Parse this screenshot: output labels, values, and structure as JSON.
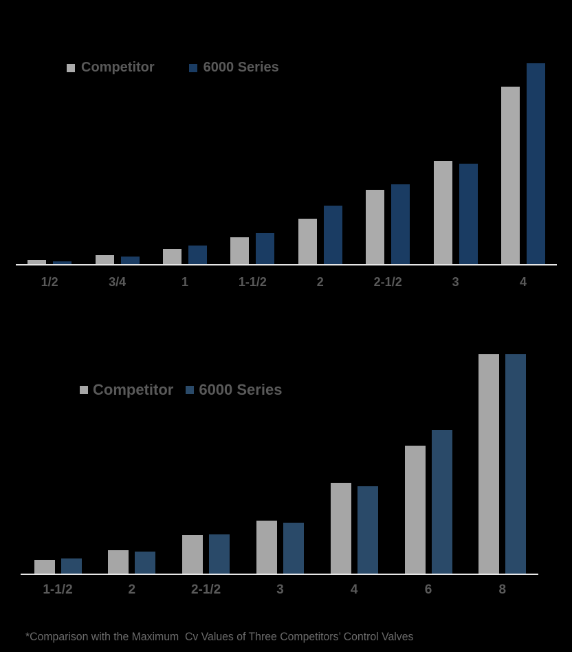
{
  "background_color": "#000000",
  "axis_line_color": "#e8e8e8",
  "label_color": "#5a5a5a",
  "legend_text_color": "#595959",
  "footer": {
    "note": "*Comparison with the Maximum  Cv Values of Three Competitors’ Control Valves"
  },
  "chart_data": [
    {
      "type": "bar",
      "title": "",
      "xlabel": "",
      "ylabel": "",
      "categories": [
        "1/2",
        "3/4",
        "1",
        "1-1/2",
        "2",
        "2-1/2",
        "3",
        "4"
      ],
      "series": [
        {
          "name": "Competitor",
          "color": "#ababab",
          "values": [
            2.1,
            4.5,
            7.5,
            13.4,
            22.6,
            37.0,
            51.4,
            88.3
          ]
        },
        {
          "name": "6000 Series",
          "color": "#1a3c63",
          "values": [
            1.5,
            3.7,
            9.2,
            15.4,
            29.1,
            39.7,
            49.9,
            100
          ]
        }
      ],
      "ylim": [
        0,
        100
      ],
      "units_note": "no y-axis shown; values estimated as percent of tallest bar",
      "grid": false,
      "legend_position": "top-left"
    },
    {
      "type": "bar",
      "title": "",
      "xlabel": "",
      "ylabel": "",
      "categories": [
        "1-1/2",
        "2",
        "2-1/2",
        "3",
        "4",
        "6",
        "8"
      ],
      "series": [
        {
          "name": "Competitor",
          "color": "#a6a6a6",
          "values": [
            6.3,
            10.7,
            17.6,
            24.1,
            41.4,
            58.2,
            100
          ]
        },
        {
          "name": "6000 Series",
          "color": "#2a4a69",
          "values": [
            6.9,
            10.0,
            17.9,
            23.2,
            39.8,
            65.5,
            100
          ]
        }
      ],
      "ylim": [
        0,
        100
      ],
      "units_note": "no y-axis shown; values estimated as percent of tallest bar",
      "grid": false,
      "legend_position": "top-left"
    }
  ]
}
